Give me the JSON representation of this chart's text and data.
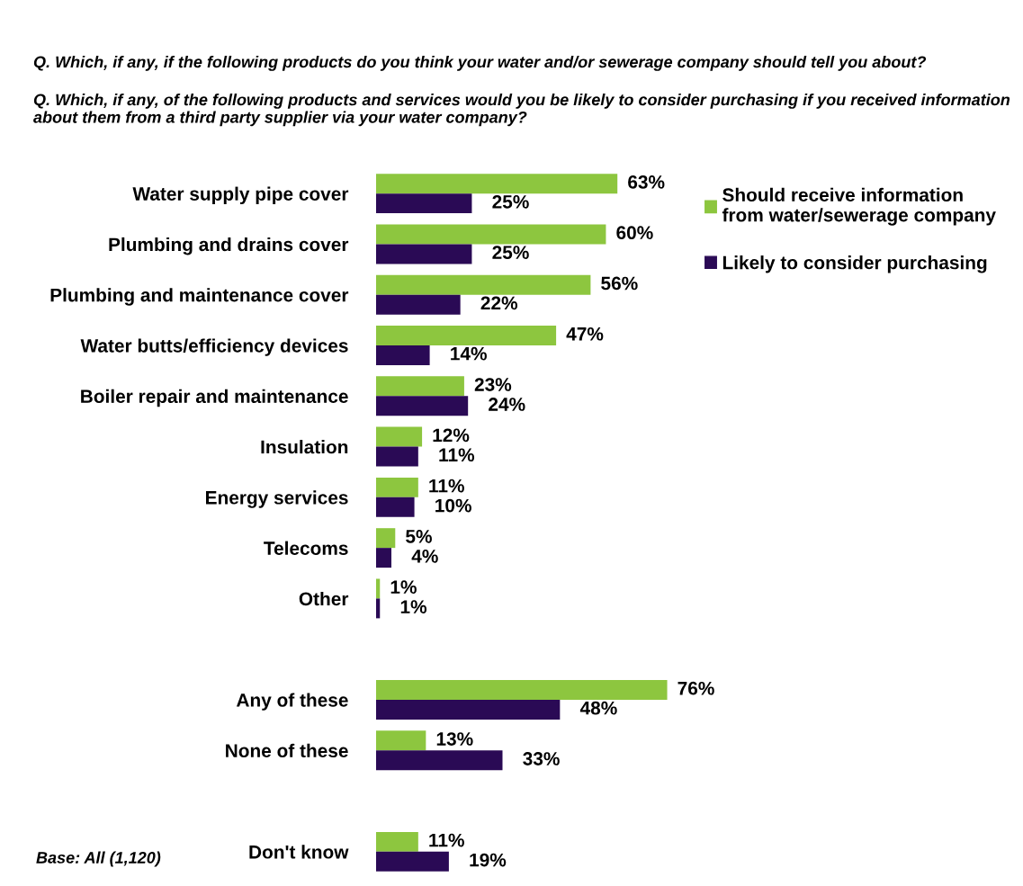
{
  "chart_data": {
    "type": "bar",
    "orientation": "horizontal",
    "title": "Q. Which, if any, if the following products do you think your water and/or sewerage company should tell you about?",
    "subtitle": "Q. Which, if any, of the following products and services would you be likely to consider purchasing if you received information about them from a third party supplier via your water company?",
    "categories": [
      "Water supply pipe cover",
      "Plumbing and drains cover",
      "Plumbing and maintenance cover",
      "Water butts/efficiency devices",
      "Boiler repair and maintenance",
      "Insulation",
      "Energy services",
      "Telecoms",
      "Other",
      null,
      "Any of these",
      "None of these",
      null,
      "Don't know"
    ],
    "series": [
      {
        "name": "Should receive information from water/sewerage company",
        "color": "#8dc63f",
        "values": [
          63,
          60,
          56,
          47,
          23,
          12,
          11,
          5,
          1,
          null,
          76,
          13,
          null,
          11
        ],
        "value_labels": [
          "63%",
          "60%",
          "56%",
          "47%",
          "23%",
          "12%",
          "11%",
          "5%",
          "1%",
          null,
          "76%",
          "13%",
          null,
          "11%"
        ]
      },
      {
        "name": "Likely to consider purchasing",
        "color": "#2a0a55",
        "values": [
          25,
          25,
          22,
          14,
          24,
          11,
          10,
          4,
          1,
          null,
          48,
          33,
          null,
          19
        ],
        "value_labels": [
          "25%",
          "25%",
          "22%",
          "14%",
          "24%",
          "11%",
          "10%",
          "4%",
          "1%",
          null,
          "48%",
          "33%",
          null,
          "19%"
        ]
      }
    ],
    "legend": "top right",
    "grid": false,
    "annotations": [
      "Base: All (1,120)"
    ]
  }
}
